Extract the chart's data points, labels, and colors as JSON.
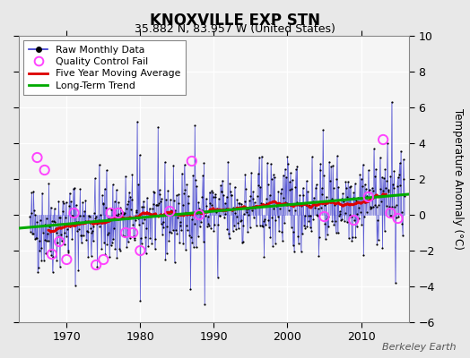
{
  "title": "KNOXVILLE EXP STN",
  "subtitle": "35.882 N, 83.957 W (United States)",
  "ylabel": "Temperature Anomaly (°C)",
  "watermark": "Berkeley Earth",
  "xlim": [
    1963.5,
    2016.5
  ],
  "ylim": [
    -6,
    10
  ],
  "yticks": [
    -6,
    -4,
    -2,
    0,
    2,
    4,
    6,
    8,
    10
  ],
  "xticks": [
    1970,
    1980,
    1990,
    2000,
    2010
  ],
  "bg_color": "#e8e8e8",
  "plot_bg": "#f5f5f5",
  "seed": 42,
  "raw_color": "#3333cc",
  "ma_color": "#dd0000",
  "trend_color": "#00aa00",
  "qc_color": "#ff44ff",
  "trend_x": [
    1963.5,
    2016.5
  ],
  "trend_y": [
    -0.75,
    1.15
  ],
  "ma_window": 60,
  "qc_years": [
    1966.0,
    1967.0,
    1968.0,
    1969.0,
    1970.0,
    1971.0,
    1974.0,
    1975.0,
    1976.0,
    1977.0,
    1978.0,
    1979.0,
    1980.0,
    1984.0,
    1987.0,
    1988.0,
    2005.0,
    2009.0,
    2011.0,
    2013.0,
    2014.0,
    2015.0
  ],
  "qc_vals": [
    3.2,
    2.5,
    -2.2,
    -1.5,
    -2.5,
    0.1,
    -2.8,
    -2.5,
    0.1,
    0.1,
    -1.0,
    -1.0,
    -2.0,
    0.2,
    3.0,
    0.0,
    -0.1,
    -0.3,
    1.0,
    4.2,
    0.1,
    -0.2
  ]
}
